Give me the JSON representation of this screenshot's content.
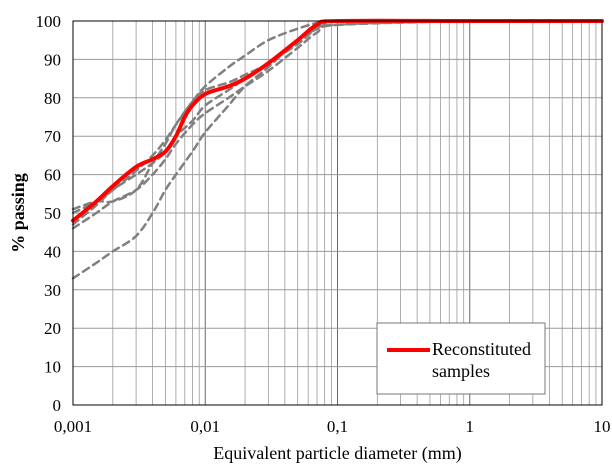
{
  "chart_data": {
    "type": "line",
    "x_scale": "log",
    "xlim": [
      0.001,
      10
    ],
    "ylim": [
      0,
      100
    ],
    "y_step": 10,
    "grid": true,
    "xlabel": "Equivalent particle diameter (mm)",
    "ylabel": "% passing",
    "x_tick_labels": [
      "0,001",
      "0,01",
      "0,1",
      "1",
      "10"
    ],
    "y_tick_labels": [
      "0",
      "10",
      "20",
      "30",
      "40",
      "50",
      "60",
      "70",
      "80",
      "90",
      "100"
    ],
    "legend_position": "bottom-right",
    "colors": {
      "main": "#ff0000",
      "dashed": "#808080",
      "grid": "#9a9a9a"
    },
    "series": [
      {
        "name": "Reconstituted samples",
        "style": "solid",
        "x": [
          0.001,
          0.0015,
          0.002,
          0.003,
          0.004,
          0.005,
          0.006,
          0.007,
          0.008,
          0.01,
          0.015,
          0.02,
          0.03,
          0.05,
          0.07,
          0.1,
          1,
          10
        ],
        "y": [
          48,
          53,
          57,
          62,
          64,
          66,
          70,
          75,
          78,
          81,
          83,
          85,
          89,
          95,
          99,
          100,
          100,
          100
        ]
      },
      {
        "style": "dashed",
        "x": [
          0.001,
          0.0015,
          0.002,
          0.003,
          0.004,
          0.005,
          0.006,
          0.008,
          0.01,
          0.015,
          0.02,
          0.03,
          0.05,
          0.07,
          0.08,
          0.1,
          1,
          10
        ],
        "y": [
          33,
          37,
          40,
          44,
          50,
          56,
          60,
          66,
          71,
          78,
          83,
          88,
          95,
          98,
          99,
          100,
          100,
          100
        ]
      },
      {
        "style": "dashed",
        "x": [
          0.001,
          0.0015,
          0.002,
          0.003,
          0.004,
          0.005,
          0.006,
          0.008,
          0.01,
          0.015,
          0.02,
          0.03,
          0.05,
          0.07,
          0.1,
          1,
          10
        ],
        "y": [
          46,
          50,
          53,
          56,
          60,
          64,
          68,
          73,
          76,
          80,
          83,
          87,
          93,
          97,
          99,
          100,
          100
        ]
      },
      {
        "style": "dashed",
        "x": [
          0.001,
          0.0015,
          0.002,
          0.003,
          0.004,
          0.005,
          0.006,
          0.008,
          0.01,
          0.015,
          0.02,
          0.03,
          0.05,
          0.07,
          0.1,
          1,
          10
        ],
        "y": [
          51,
          53,
          53,
          56,
          63,
          68,
          73,
          79,
          82,
          84,
          86,
          89,
          95,
          98,
          100,
          100,
          100
        ]
      },
      {
        "style": "dashed",
        "x": [
          0.001,
          0.0015,
          0.002,
          0.003,
          0.004,
          0.005,
          0.006,
          0.008,
          0.01,
          0.015,
          0.02,
          0.03,
          0.05,
          0.08,
          0.1,
          1,
          10
        ],
        "y": [
          50,
          53,
          56,
          61,
          65,
          69,
          73,
          79,
          83,
          88,
          91,
          95,
          98,
          100,
          100,
          100,
          100
        ]
      },
      {
        "style": "dashed",
        "x": [
          0.001,
          0.0015,
          0.002,
          0.003,
          0.004,
          0.005,
          0.006,
          0.008,
          0.01,
          0.015,
          0.02,
          0.03,
          0.05,
          0.07,
          0.1,
          1,
          10
        ],
        "y": [
          47,
          52,
          56,
          60,
          63,
          66,
          70,
          74,
          78,
          82,
          85,
          89,
          94,
          98,
          99,
          100,
          100
        ]
      }
    ]
  }
}
